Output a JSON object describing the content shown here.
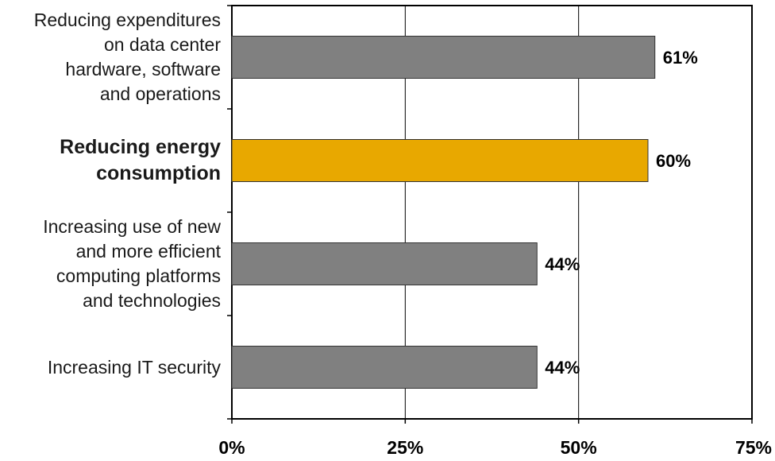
{
  "chart_data": {
    "type": "bar",
    "orientation": "horizontal",
    "categories": [
      "Reducing expenditures\non data center\nhardware, software\nand operations",
      "Reducing energy\nconsumption",
      "Increasing use of new\nand more efficient\ncomputing platforms\nand technologies",
      "Increasing IT security"
    ],
    "values": [
      61,
      60,
      44,
      44
    ],
    "data_labels": [
      "61%",
      "60%",
      "44%",
      "44%"
    ],
    "xlim": [
      0,
      75
    ],
    "xticks": [
      "0%",
      "25%",
      "50%",
      "75%"
    ],
    "bar_colors": [
      "#808080",
      "#e8a800",
      "#808080",
      "#808080"
    ],
    "highlighted_category_index": 1,
    "grid": "vertical",
    "title": "",
    "xlabel": "",
    "ylabel": ""
  }
}
